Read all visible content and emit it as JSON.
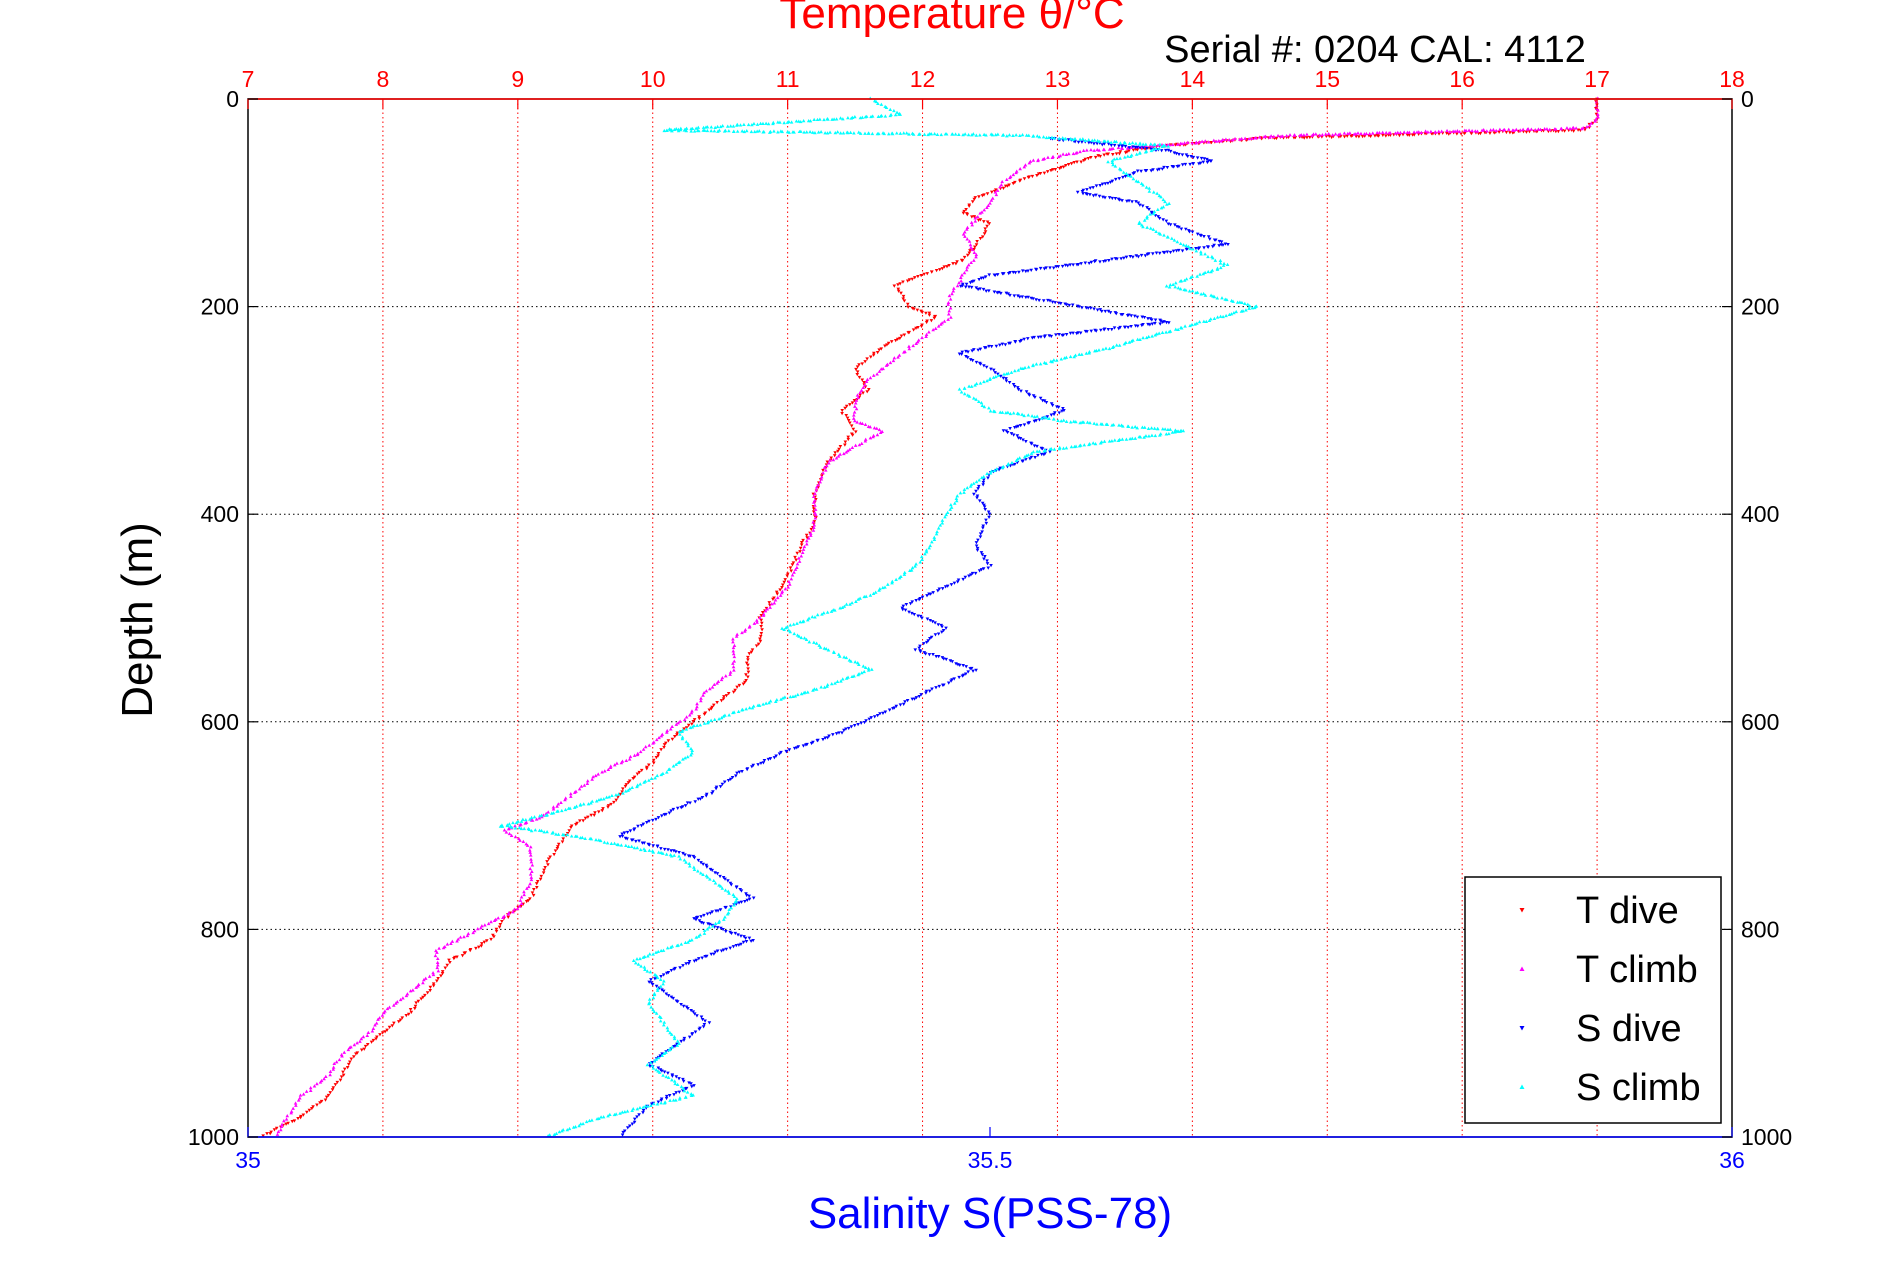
{
  "chart_data": {
    "type": "scatter",
    "title": "Temperature θ/°C",
    "subtitle": "Serial #: 0204  CAL: 4112",
    "xlabel": "Salinity S(PSS-78)",
    "ylabel": "Depth (m)",
    "temperature_axis": {
      "range": [
        7,
        18
      ],
      "ticks": [
        "7",
        "8",
        "9",
        "10",
        "11",
        "12",
        "13",
        "14",
        "15",
        "16",
        "17",
        "18"
      ],
      "color": "#ff0000",
      "position": "top"
    },
    "salinity_axis": {
      "range": [
        35,
        36
      ],
      "ticks": [
        "35",
        "35.5",
        "36"
      ],
      "color": "#0000ff",
      "position": "bottom"
    },
    "depth_axis": {
      "range": [
        0,
        1000
      ],
      "inverted": true,
      "ticks": [
        "0",
        "200",
        "400",
        "600",
        "800",
        "1000"
      ]
    },
    "grid": true,
    "legend_position": "bottom-right",
    "series": [
      {
        "name": "T dive",
        "axis": "temperature",
        "color": "#ff0000",
        "marker": "triangle-down",
        "points": [
          [
            17,
            0
          ],
          [
            17,
            20
          ],
          [
            16.9,
            30
          ],
          [
            14.5,
            38
          ],
          [
            13.8,
            45
          ],
          [
            13.3,
            55
          ],
          [
            12.8,
            75
          ],
          [
            12.4,
            95
          ],
          [
            12.3,
            110
          ],
          [
            12.5,
            120
          ],
          [
            12.4,
            140
          ],
          [
            12.3,
            155
          ],
          [
            12.1,
            165
          ],
          [
            11.8,
            180
          ],
          [
            11.9,
            200
          ],
          [
            12.1,
            210
          ],
          [
            11.7,
            240
          ],
          [
            11.5,
            260
          ],
          [
            11.6,
            280
          ],
          [
            11.4,
            300
          ],
          [
            11.5,
            320
          ],
          [
            11.3,
            350
          ],
          [
            11.2,
            380
          ],
          [
            11.2,
            410
          ],
          [
            11.1,
            430
          ],
          [
            11.0,
            460
          ],
          [
            10.9,
            480
          ],
          [
            10.8,
            500
          ],
          [
            10.8,
            520
          ],
          [
            10.7,
            540
          ],
          [
            10.7,
            560
          ],
          [
            10.5,
            580
          ],
          [
            10.3,
            600
          ],
          [
            10.1,
            620
          ],
          [
            10.0,
            640
          ],
          [
            9.8,
            660
          ],
          [
            9.7,
            680
          ],
          [
            9.4,
            700
          ],
          [
            9.3,
            720
          ],
          [
            9.2,
            740
          ],
          [
            9.1,
            770
          ],
          [
            8.9,
            790
          ],
          [
            8.8,
            810
          ],
          [
            8.5,
            830
          ],
          [
            8.4,
            850
          ],
          [
            8.2,
            880
          ],
          [
            8.0,
            900
          ],
          [
            7.8,
            920
          ],
          [
            7.7,
            940
          ],
          [
            7.6,
            960
          ],
          [
            7.4,
            980
          ],
          [
            7.1,
            1000
          ]
        ]
      },
      {
        "name": "T climb",
        "axis": "temperature",
        "color": "#ff00ff",
        "marker": "triangle-up",
        "points": [
          [
            17,
            0
          ],
          [
            17,
            20
          ],
          [
            16.9,
            28
          ],
          [
            14.7,
            35
          ],
          [
            13.2,
            50
          ],
          [
            12.8,
            60
          ],
          [
            12.6,
            80
          ],
          [
            12.5,
            100
          ],
          [
            12.4,
            115
          ],
          [
            12.3,
            130
          ],
          [
            12.4,
            150
          ],
          [
            12.3,
            170
          ],
          [
            12.2,
            190
          ],
          [
            12.2,
            210
          ],
          [
            12.0,
            230
          ],
          [
            11.8,
            250
          ],
          [
            11.6,
            270
          ],
          [
            11.5,
            290
          ],
          [
            11.5,
            310
          ],
          [
            11.7,
            320
          ],
          [
            11.3,
            350
          ],
          [
            11.2,
            380
          ],
          [
            11.2,
            410
          ],
          [
            11.1,
            440
          ],
          [
            11.0,
            470
          ],
          [
            10.8,
            500
          ],
          [
            10.6,
            520
          ],
          [
            10.6,
            550
          ],
          [
            10.4,
            570
          ],
          [
            10.3,
            590
          ],
          [
            10.1,
            610
          ],
          [
            9.9,
            630
          ],
          [
            9.6,
            650
          ],
          [
            9.4,
            670
          ],
          [
            9.2,
            690
          ],
          [
            8.9,
            705
          ],
          [
            9.1,
            720
          ],
          [
            9.1,
            750
          ],
          [
            9.0,
            780
          ],
          [
            8.7,
            800
          ],
          [
            8.4,
            820
          ],
          [
            8.4,
            840
          ],
          [
            8.2,
            860
          ],
          [
            8.0,
            880
          ],
          [
            7.9,
            900
          ],
          [
            7.7,
            920
          ],
          [
            7.6,
            940
          ],
          [
            7.4,
            960
          ],
          [
            7.3,
            980
          ],
          [
            7.2,
            1000
          ]
        ]
      },
      {
        "name": "S dive",
        "axis": "salinity",
        "color": "#0000ff",
        "marker": "triangle-down",
        "points": [
          [
            35.54,
            38
          ],
          [
            35.62,
            50
          ],
          [
            35.65,
            60
          ],
          [
            35.6,
            70
          ],
          [
            35.56,
            90
          ],
          [
            35.6,
            100
          ],
          [
            35.62,
            120
          ],
          [
            35.66,
            140
          ],
          [
            35.58,
            155
          ],
          [
            35.5,
            170
          ],
          [
            35.48,
            180
          ],
          [
            35.56,
            200
          ],
          [
            35.62,
            215
          ],
          [
            35.53,
            230
          ],
          [
            35.48,
            245
          ],
          [
            35.5,
            260
          ],
          [
            35.52,
            280
          ],
          [
            35.55,
            300
          ],
          [
            35.51,
            320
          ],
          [
            35.54,
            340
          ],
          [
            35.5,
            360
          ],
          [
            35.49,
            380
          ],
          [
            35.5,
            400
          ],
          [
            35.49,
            430
          ],
          [
            35.5,
            450
          ],
          [
            35.47,
            470
          ],
          [
            35.44,
            490
          ],
          [
            35.47,
            510
          ],
          [
            35.45,
            530
          ],
          [
            35.49,
            550
          ],
          [
            35.46,
            570
          ],
          [
            35.43,
            590
          ],
          [
            35.4,
            610
          ],
          [
            35.36,
            630
          ],
          [
            35.33,
            650
          ],
          [
            35.31,
            670
          ],
          [
            35.28,
            690
          ],
          [
            35.25,
            710
          ],
          [
            35.3,
            730
          ],
          [
            35.32,
            750
          ],
          [
            35.34,
            770
          ],
          [
            35.3,
            790
          ],
          [
            35.34,
            810
          ],
          [
            35.3,
            830
          ],
          [
            35.27,
            850
          ],
          [
            35.29,
            870
          ],
          [
            35.31,
            890
          ],
          [
            35.29,
            910
          ],
          [
            35.27,
            930
          ],
          [
            35.3,
            950
          ],
          [
            35.27,
            970
          ],
          [
            35.25,
            1000
          ]
        ]
      },
      {
        "name": "S climb",
        "axis": "salinity",
        "color": "#00ffff",
        "marker": "triangle-up",
        "points": [
          [
            35.42,
            0
          ],
          [
            35.44,
            15
          ],
          [
            35.28,
            30
          ],
          [
            35.52,
            35
          ],
          [
            35.62,
            45
          ],
          [
            35.58,
            60
          ],
          [
            35.6,
            80
          ],
          [
            35.62,
            100
          ],
          [
            35.6,
            120
          ],
          [
            35.63,
            140
          ],
          [
            35.66,
            160
          ],
          [
            35.62,
            180
          ],
          [
            35.68,
            200
          ],
          [
            35.63,
            220
          ],
          [
            35.58,
            240
          ],
          [
            35.52,
            260
          ],
          [
            35.48,
            280
          ],
          [
            35.5,
            300
          ],
          [
            35.55,
            310
          ],
          [
            35.63,
            320
          ],
          [
            35.53,
            340
          ],
          [
            35.5,
            360
          ],
          [
            35.48,
            380
          ],
          [
            35.47,
            400
          ],
          [
            35.46,
            430
          ],
          [
            35.45,
            450
          ],
          [
            35.43,
            470
          ],
          [
            35.4,
            490
          ],
          [
            35.36,
            510
          ],
          [
            35.39,
            530
          ],
          [
            35.42,
            550
          ],
          [
            35.38,
            570
          ],
          [
            35.33,
            590
          ],
          [
            35.29,
            610
          ],
          [
            35.3,
            630
          ],
          [
            35.28,
            650
          ],
          [
            35.25,
            670
          ],
          [
            35.2,
            690
          ],
          [
            35.17,
            700
          ],
          [
            35.22,
            710
          ],
          [
            35.29,
            730
          ],
          [
            35.31,
            750
          ],
          [
            35.33,
            770
          ],
          [
            35.32,
            790
          ],
          [
            35.3,
            810
          ],
          [
            35.26,
            830
          ],
          [
            35.28,
            850
          ],
          [
            35.27,
            870
          ],
          [
            35.28,
            890
          ],
          [
            35.29,
            910
          ],
          [
            35.27,
            930
          ],
          [
            35.3,
            960
          ],
          [
            35.24,
            980
          ],
          [
            35.2,
            1000
          ]
        ]
      }
    ]
  }
}
